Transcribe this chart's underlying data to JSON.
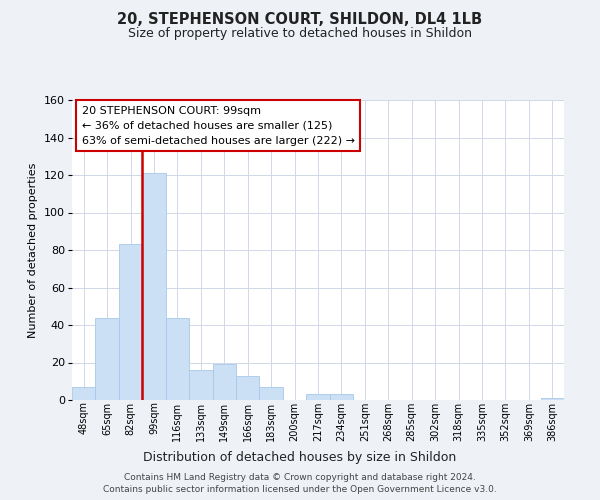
{
  "title": "20, STEPHENSON COURT, SHILDON, DL4 1LB",
  "subtitle": "Size of property relative to detached houses in Shildon",
  "xlabel": "Distribution of detached houses by size in Shildon",
  "ylabel": "Number of detached properties",
  "bin_labels": [
    "48sqm",
    "65sqm",
    "82sqm",
    "99sqm",
    "116sqm",
    "133sqm",
    "149sqm",
    "166sqm",
    "183sqm",
    "200sqm",
    "217sqm",
    "234sqm",
    "251sqm",
    "268sqm",
    "285sqm",
    "302sqm",
    "318sqm",
    "335sqm",
    "352sqm",
    "369sqm",
    "386sqm"
  ],
  "bar_heights": [
    7,
    44,
    83,
    121,
    44,
    16,
    19,
    13,
    7,
    0,
    3,
    3,
    0,
    0,
    0,
    0,
    0,
    0,
    0,
    0,
    1
  ],
  "bar_color": "#cce0f5",
  "bar_edge_color": "#a8c8e8",
  "vline_x_index": 3,
  "vline_color": "#cc0000",
  "ylim": [
    0,
    160
  ],
  "yticks": [
    0,
    20,
    40,
    60,
    80,
    100,
    120,
    140,
    160
  ],
  "annotation_title": "20 STEPHENSON COURT: 99sqm",
  "annotation_line1": "← 36% of detached houses are smaller (125)",
  "annotation_line2": "63% of semi-detached houses are larger (222) →",
  "annotation_box_color": "#ffffff",
  "annotation_box_edge": "#cc0000",
  "footer_line1": "Contains HM Land Registry data © Crown copyright and database right 2024.",
  "footer_line2": "Contains public sector information licensed under the Open Government Licence v3.0.",
  "background_color": "#eef2f7",
  "plot_background": "#ffffff",
  "grid_color": "#d0d8e8"
}
